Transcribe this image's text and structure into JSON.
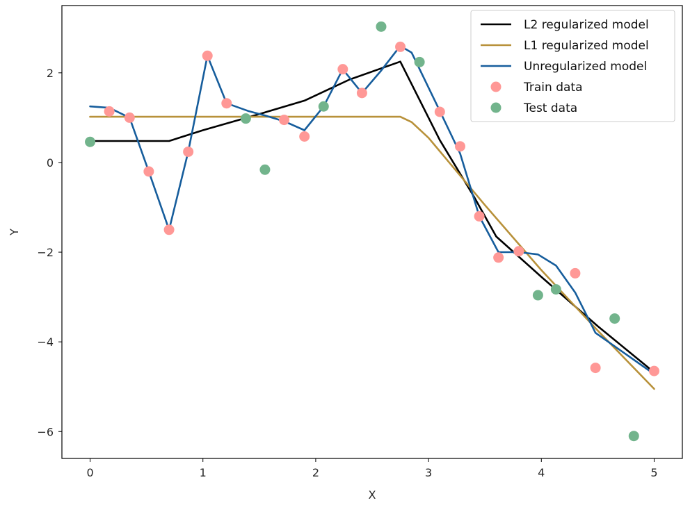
{
  "chart_data": {
    "type": "line",
    "title": "",
    "xlabel": "X",
    "ylabel": "Y",
    "xlim": [
      -0.25,
      5.25
    ],
    "ylim": [
      -6.6,
      3.5
    ],
    "xticks": [
      0,
      1,
      2,
      3,
      4,
      5
    ],
    "yticks": [
      -6,
      -4,
      -2,
      0,
      2
    ],
    "grid": false,
    "legend_position": "top-right",
    "series": [
      {
        "name": "L2 regularized model",
        "kind": "line",
        "color": "#000000",
        "x": [
          0,
          0.7,
          1.0,
          1.5,
          1.9,
          2.3,
          2.75,
          3.1,
          3.4,
          3.6,
          4.0,
          4.5,
          5.0
        ],
        "y": [
          0.48,
          0.48,
          0.72,
          1.08,
          1.38,
          1.85,
          2.25,
          0.5,
          -0.75,
          -1.65,
          -2.55,
          -3.65,
          -4.68
        ]
      },
      {
        "name": "L1 regularized model",
        "kind": "line",
        "color": "#b8913a",
        "x": [
          0,
          1.0,
          2.0,
          2.75,
          2.85,
          3.0,
          3.5,
          4.0,
          4.5,
          5.0
        ],
        "y": [
          1.02,
          1.02,
          1.02,
          1.02,
          0.9,
          0.55,
          -0.95,
          -2.4,
          -3.75,
          -5.05
        ]
      },
      {
        "name": "Unregularized model",
        "kind": "line",
        "color": "#165d9c",
        "x": [
          0,
          0.17,
          0.35,
          0.52,
          0.7,
          0.87,
          1.04,
          1.21,
          1.4,
          1.55,
          1.72,
          1.9,
          2.07,
          2.24,
          2.41,
          2.58,
          2.75,
          2.85,
          3.1,
          3.28,
          3.45,
          3.62,
          3.8,
          3.97,
          4.13,
          4.3,
          4.48,
          4.65,
          4.82,
          5.0
        ],
        "y": [
          1.25,
          1.22,
          1.0,
          -0.2,
          -1.5,
          0.24,
          2.38,
          1.32,
          1.15,
          1.05,
          0.92,
          0.72,
          1.25,
          2.08,
          1.55,
          2.05,
          2.6,
          2.45,
          1.15,
          0.2,
          -1.2,
          -2.0,
          -2.0,
          -2.05,
          -2.3,
          -2.9,
          -3.8,
          -4.1,
          -4.4,
          -4.72
        ]
      },
      {
        "name": "Train data",
        "kind": "scatter",
        "color": "#ff9896",
        "x": [
          0.17,
          0.35,
          0.52,
          0.7,
          0.87,
          1.04,
          1.21,
          1.72,
          1.9,
          2.24,
          2.41,
          2.75,
          3.1,
          3.28,
          3.45,
          3.62,
          3.8,
          4.3,
          4.48,
          5.0
        ],
        "y": [
          1.14,
          1.0,
          -0.2,
          -1.5,
          0.24,
          2.38,
          1.32,
          0.95,
          0.58,
          2.08,
          1.55,
          2.58,
          1.13,
          0.36,
          -1.2,
          -2.12,
          -1.98,
          -2.47,
          -4.58,
          -4.65
        ]
      },
      {
        "name": "Test data",
        "kind": "scatter",
        "color": "#72b48c",
        "x": [
          0,
          1.38,
          1.55,
          2.07,
          2.58,
          2.92,
          3.97,
          4.13,
          4.65,
          4.82
        ],
        "y": [
          0.46,
          0.98,
          -0.16,
          1.25,
          3.03,
          2.24,
          -2.96,
          -2.83,
          -3.48,
          -6.1
        ]
      }
    ]
  }
}
